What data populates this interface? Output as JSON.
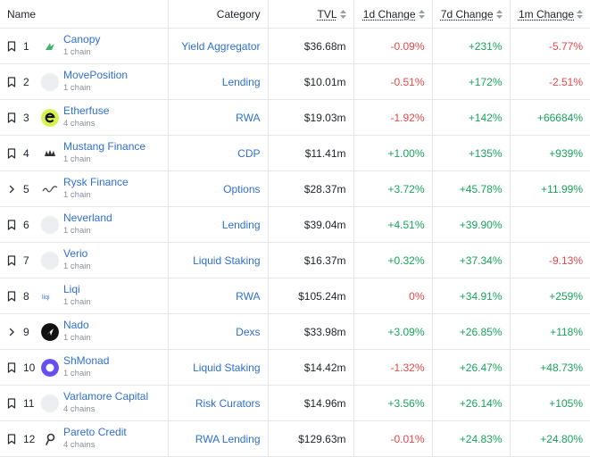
{
  "header": {
    "name": "Name",
    "category": "Category",
    "tvl": "TVL",
    "d1": "1d Change",
    "d7": "7d Change",
    "m1": "1m Change"
  },
  "rows": [
    {
      "rank": "1",
      "lead": "bookmark-icon",
      "name": "Canopy",
      "chains": "1 chain",
      "logo": "canopy-logo",
      "category": "Yield Aggregator",
      "tvl": "$36.68m",
      "d1": "-0.09%",
      "d1s": "neg",
      "d7": "+231%",
      "d7s": "pos",
      "m1": "-5.77%",
      "m1s": "neg"
    },
    {
      "rank": "2",
      "lead": "bookmark-icon",
      "name": "MovePosition",
      "chains": "1 chain",
      "logo": "blank-logo",
      "category": "Lending",
      "tvl": "$10.01m",
      "d1": "-0.51%",
      "d1s": "neg",
      "d7": "+172%",
      "d7s": "pos",
      "m1": "-2.51%",
      "m1s": "neg"
    },
    {
      "rank": "3",
      "lead": "bookmark-icon",
      "name": "Etherfuse",
      "chains": "4 chains",
      "logo": "etherfuse-logo",
      "category": "RWA",
      "tvl": "$19.03m",
      "d1": "-1.92%",
      "d1s": "neg",
      "d7": "+142%",
      "d7s": "pos",
      "m1": "+66684%",
      "m1s": "pos"
    },
    {
      "rank": "4",
      "lead": "bookmark-icon",
      "name": "Mustang Finance",
      "chains": "1 chain",
      "logo": "mustang-logo",
      "category": "CDP",
      "tvl": "$11.41m",
      "d1": "+1.00%",
      "d1s": "pos",
      "d7": "+135%",
      "d7s": "pos",
      "m1": "+939%",
      "m1s": "pos"
    },
    {
      "rank": "5",
      "lead": "chevron-right-icon",
      "name": "Rysk Finance",
      "chains": "1 chain",
      "logo": "rysk-logo",
      "category": "Options",
      "tvl": "$28.37m",
      "d1": "+3.72%",
      "d1s": "pos",
      "d7": "+45.78%",
      "d7s": "pos",
      "m1": "+11.99%",
      "m1s": "pos"
    },
    {
      "rank": "6",
      "lead": "bookmark-icon",
      "name": "Neverland",
      "chains": "1 chain",
      "logo": "blank-logo",
      "category": "Lending",
      "tvl": "$39.04m",
      "d1": "+4.51%",
      "d1s": "pos",
      "d7": "+39.90%",
      "d7s": "pos",
      "m1": "",
      "m1s": "pos"
    },
    {
      "rank": "7",
      "lead": "bookmark-icon",
      "name": "Verio",
      "chains": "1 chain",
      "logo": "blank-logo",
      "category": "Liquid Staking",
      "tvl": "$16.37m",
      "d1": "+0.32%",
      "d1s": "pos",
      "d7": "+37.34%",
      "d7s": "pos",
      "m1": "-9.13%",
      "m1s": "neg"
    },
    {
      "rank": "8",
      "lead": "bookmark-icon",
      "name": "Liqi",
      "chains": "1 chain",
      "logo": "liqi-logo",
      "category": "RWA",
      "tvl": "$105.24m",
      "d1": "0%",
      "d1s": "neg",
      "d7": "+34.91%",
      "d7s": "pos",
      "m1": "+259%",
      "m1s": "pos"
    },
    {
      "rank": "9",
      "lead": "chevron-right-icon",
      "name": "Nado",
      "chains": "1 chain",
      "logo": "nado-logo",
      "category": "Dexs",
      "tvl": "$33.98m",
      "d1": "+3.09%",
      "d1s": "pos",
      "d7": "+26.85%",
      "d7s": "pos",
      "m1": "+118%",
      "m1s": "pos"
    },
    {
      "rank": "10",
      "lead": "bookmark-icon",
      "name": "ShMonad",
      "chains": "1 chain",
      "logo": "shmonad-logo",
      "category": "Liquid Staking",
      "tvl": "$14.42m",
      "d1": "-1.32%",
      "d1s": "neg",
      "d7": "+26.47%",
      "d7s": "pos",
      "m1": "+48.73%",
      "m1s": "pos"
    },
    {
      "rank": "11",
      "lead": "bookmark-icon",
      "name": "Varlamore Capital",
      "chains": "4 chains",
      "logo": "blank-logo",
      "category": "Risk Curators",
      "tvl": "$14.96m",
      "d1": "+3.56%",
      "d1s": "pos",
      "d7": "+26.14%",
      "d7s": "pos",
      "m1": "+105%",
      "m1s": "pos"
    },
    {
      "rank": "12",
      "lead": "bookmark-icon",
      "name": "Pareto Credit",
      "chains": "4 chains",
      "logo": "pareto-logo",
      "category": "RWA Lending",
      "tvl": "$129.63m",
      "d1": "-0.01%",
      "d1s": "neg",
      "d7": "+24.83%",
      "d7s": "pos",
      "m1": "+24.80%",
      "m1s": "pos"
    }
  ],
  "colors": {
    "link": "#2f6fd1",
    "negative": "#e5484d",
    "positive": "#19a35b",
    "muted": "#8a8f98",
    "border": "#e3e5e8"
  }
}
